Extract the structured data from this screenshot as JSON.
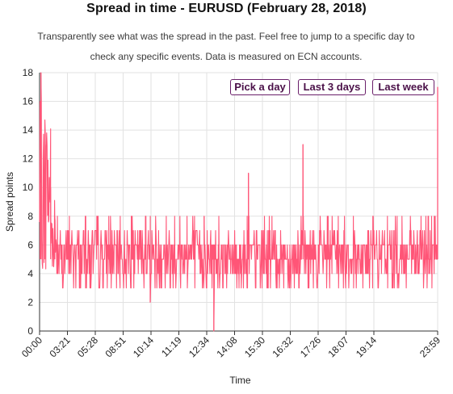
{
  "page": {
    "title": "Spread in time - EURUSD (February 28, 2018)",
    "subtitle": "Transparently see what was the spread in the past. Feel free to jump to a specific day to check any specific events. Data is measured on ECN accounts."
  },
  "controls": {
    "pick_day": "Pick a day",
    "last_3_days": "Last 3 days",
    "last_week": "Last week"
  },
  "colors": {
    "line": "#ff5577",
    "grid": "#e2e2e2",
    "axis": "#333333",
    "button_border": "#6a1f6a"
  },
  "chart_data": {
    "type": "line",
    "title": "",
    "xlabel": "Time",
    "ylabel": "Spread points",
    "ylim": [
      0,
      18
    ],
    "yticks": [
      0,
      2,
      4,
      6,
      8,
      10,
      12,
      14,
      16,
      18
    ],
    "x_start": "00:00",
    "x_end": "23:59",
    "xticks": [
      "00:00",
      "03:21",
      "05:28",
      "08:51",
      "10:14",
      "11:19",
      "12:34",
      "14:08",
      "15:30",
      "16:32",
      "17:26",
      "18:07",
      "19:14",
      "23:59"
    ],
    "grid": true,
    "series": [
      {
        "values_note_free": true,
        "baseline_band": [
          3,
          7
        ],
        "typical_levels": [
          4,
          5,
          6,
          7
        ],
        "spikes": [
          {
            "time": "00:05",
            "value": 18
          },
          {
            "time": "00:02",
            "value": 16
          },
          {
            "time": "00:20",
            "value": 13
          },
          {
            "time": "00:40",
            "value": 10
          },
          {
            "time": "00:55",
            "value": 8
          },
          {
            "time": "06:40",
            "value": 2
          },
          {
            "time": "09:55",
            "value": 8
          },
          {
            "time": "10:30",
            "value": 0
          },
          {
            "time": "12:35",
            "value": 11
          },
          {
            "time": "15:52",
            "value": 13
          },
          {
            "time": "23:50",
            "value": 8
          },
          {
            "time": "23:59",
            "value": 17
          }
        ]
      }
    ]
  }
}
